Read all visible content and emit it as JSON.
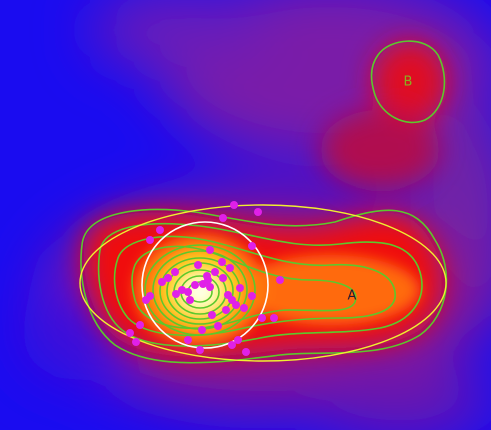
{
  "sources": [
    {
      "label": "A"
    },
    {
      "label": "B"
    }
  ]
}
